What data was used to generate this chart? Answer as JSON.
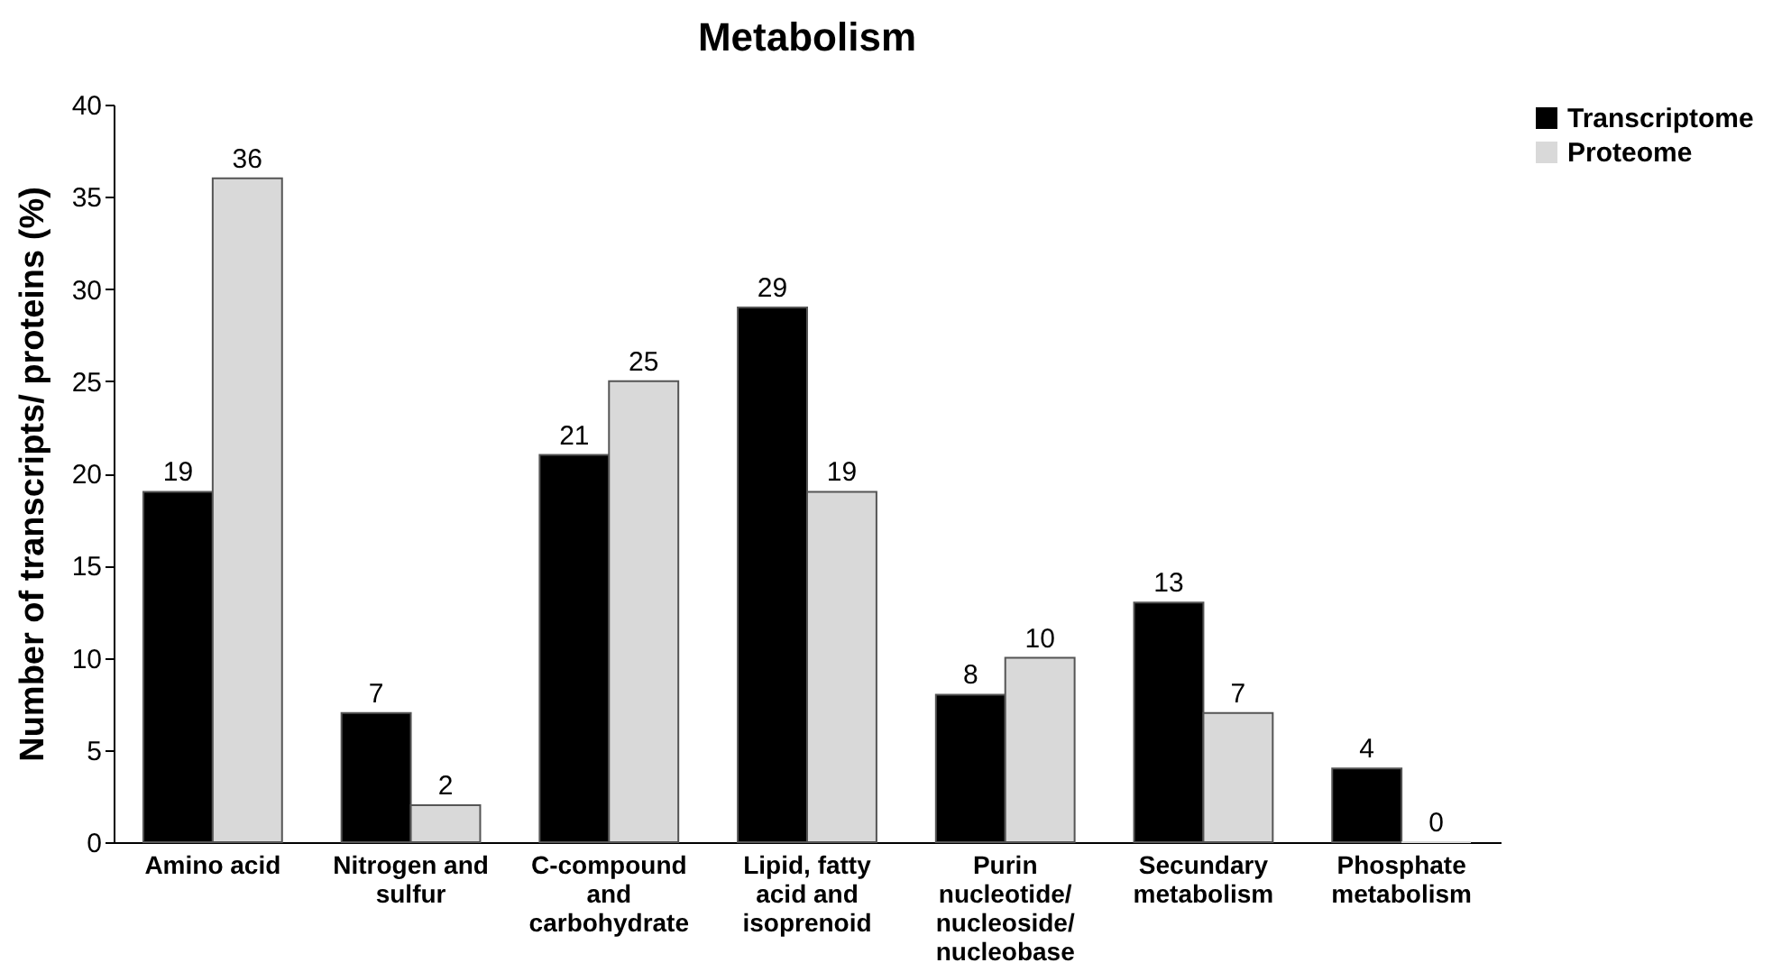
{
  "chart_data": {
    "type": "bar",
    "title": "Metabolism",
    "ylabel": "Number of transcripts/ proteins (%)",
    "categories": [
      "Amino acid",
      "Nitrogen and sulfur",
      "C-compound and carbohydrate",
      "Lipid, fatty acid and isoprenoid",
      "Purin nucleotide/ nucleoside/ nucleobase",
      "Secundary metabolism",
      "Phosphate metabolism"
    ],
    "series": [
      {
        "name": "Transcriptome",
        "color": "#000000",
        "values": [
          19,
          7,
          21,
          29,
          8,
          13,
          4
        ]
      },
      {
        "name": "Proteome",
        "color": "#d9d9d9",
        "values": [
          36,
          2,
          25,
          19,
          10,
          7,
          0
        ]
      }
    ],
    "ylim": [
      0,
      40
    ],
    "yticks": [
      0,
      5,
      10,
      15,
      20,
      25,
      30,
      35,
      40
    ],
    "data_labels": true,
    "legend": "right",
    "grid": false
  }
}
